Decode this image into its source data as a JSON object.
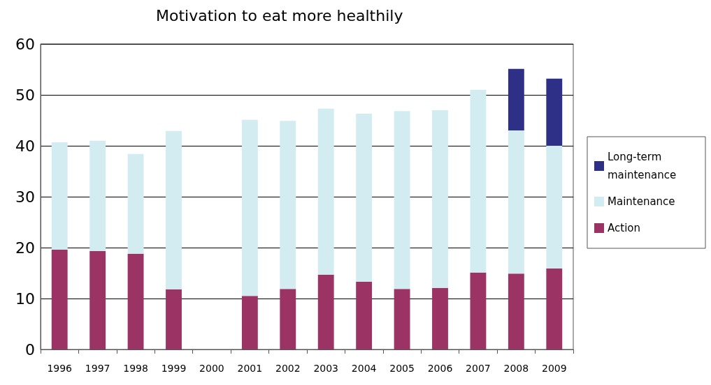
{
  "chart_data": {
    "type": "bar",
    "title": "Motivation to eat more healthily",
    "stacked": true,
    "categories": [
      "1996",
      "1997",
      "1998",
      "1999",
      "2000",
      "2001",
      "2002",
      "2003",
      "2004",
      "2005",
      "2006",
      "2007",
      "2008",
      "2009"
    ],
    "series": [
      {
        "name": "Action",
        "color": "#9b3465",
        "values": [
          19.6,
          19.3,
          18.8,
          11.8,
          null,
          10.5,
          11.9,
          14.7,
          13.3,
          11.9,
          12.1,
          15.1,
          14.9,
          15.9
        ]
      },
      {
        "name": "Maintenance",
        "color": "#d3ecf1",
        "values": [
          21.1,
          21.7,
          19.6,
          31.1,
          null,
          34.6,
          33.0,
          32.6,
          33.0,
          34.9,
          34.9,
          35.9,
          28.1,
          24.1
        ]
      },
      {
        "name": "Long-term maintenance",
        "color": "#2e2f86",
        "values": [
          null,
          null,
          null,
          null,
          null,
          null,
          null,
          null,
          null,
          null,
          null,
          null,
          12.1,
          13.2
        ]
      }
    ],
    "ylim": [
      0,
      60
    ],
    "yticks": [
      0,
      10,
      20,
      30,
      40,
      50,
      60
    ],
    "grid": "y",
    "legend": "right"
  }
}
